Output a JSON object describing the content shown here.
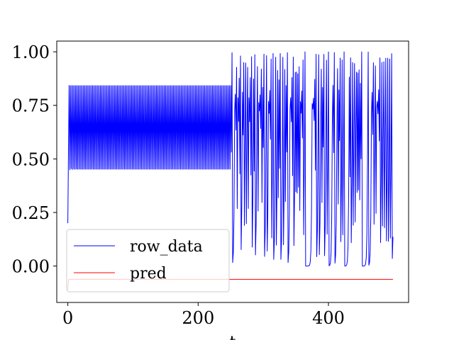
{
  "chart_data": {
    "type": "line",
    "title": "",
    "xlabel": "t",
    "ylabel": "",
    "xlim": [
      -17,
      523
    ],
    "ylim": [
      -0.17,
      1.05
    ],
    "xticks": [
      0,
      200,
      400
    ],
    "xtick_labels": [
      "0",
      "200",
      "400"
    ],
    "yticks": [
      0.0,
      0.25,
      0.5,
      0.75,
      1.0
    ],
    "ytick_labels": [
      "0.00",
      "0.25",
      "0.50",
      "0.75",
      "1.00"
    ],
    "grid": false,
    "legend_position": "lower-left",
    "series": [
      {
        "name": "row_data",
        "color": "#0000ff",
        "generator": "logistic-map",
        "x_range": [
          0,
          499
        ],
        "initial_value": 0.2,
        "r_regime_1": 3.4,
        "switch_at": 250,
        "r_regime_2": 4.0
      },
      {
        "name": "pred",
        "color": "#ff0000",
        "x": [
          0,
          1,
          2,
          499
        ],
        "y": [
          -0.11,
          -0.065,
          -0.062,
          -0.062
        ]
      }
    ]
  }
}
